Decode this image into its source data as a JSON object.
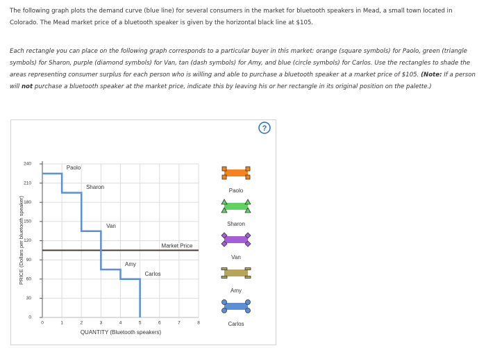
{
  "intro": "The following graph plots the demand curve (blue line) for several consumers in the market for bluetooth speakers in Mead, a small town located in Colorado. The Mead market price of a bluetooth speaker is given by the horizontal black line at $105.",
  "instructions": "Each rectangle you can place on the following graph corresponds to a particular buyer in this market: orange (square symbols) for Paolo, green (triangle symbols) for Sharon, purple (diamond symbols) for Van, tan (dash symbols) for Amy, and blue (circle symbols) for Carlos. Use the rectangles to shade the areas representing consumer surplus for each person who is willing and able to purchase a bluetooth speaker at a market price of $105.",
  "note": [
    "(Note:",
    " If a person will ",
    "not",
    " purchase a bluetooth speaker at the market price, indicate this by leaving his or her rectangle in its original position on the palette.)"
  ],
  "help": "?",
  "chart_data": {
    "type": "line",
    "x_label": "QUANTITY (Bluetooth speakers)",
    "y_label": "PRICE (Dollars per bluetooth speaker)",
    "x": [
      0,
      1,
      1,
      2,
      2,
      3,
      3,
      4,
      4,
      5,
      5
    ],
    "series": [
      {
        "color": "#5b8fd6",
        "values": [
          225,
          225,
          195,
          195,
          135,
          135,
          75,
          75,
          60,
          60,
          0
        ]
      }
    ],
    "step_labels": [
      "Paolo",
      "Sharon",
      "Van",
      "Amy",
      "Carlos"
    ],
    "market_price": {
      "label": "Market Price",
      "value": 105,
      "color": "#4a3b3b"
    },
    "xlim": [
      0,
      8
    ],
    "xticks": [
      0,
      1,
      2,
      3,
      4,
      5,
      6,
      7,
      8
    ],
    "ylim": [
      0,
      240
    ],
    "yticks": [
      0,
      30,
      60,
      90,
      120,
      150,
      180,
      210,
      240
    ],
    "grid": true,
    "palette": [
      {
        "name": "Paolo",
        "color": "#f5821f",
        "symbol": "square"
      },
      {
        "name": "Sharon",
        "color": "#5fd35f",
        "symbol": "triangle"
      },
      {
        "name": "Van",
        "color": "#a45fd6",
        "symbol": "diamond"
      },
      {
        "name": "Amy",
        "color": "#b5a45a",
        "symbol": "dash"
      },
      {
        "name": "Carlos",
        "color": "#5b8fd6",
        "symbol": "circle"
      }
    ]
  }
}
